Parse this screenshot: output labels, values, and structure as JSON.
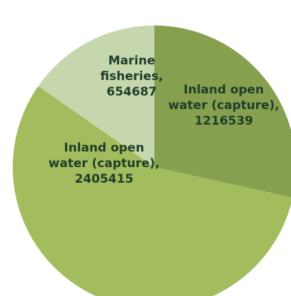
{
  "chart_data": {
    "type": "pie",
    "title": "",
    "slices": [
      {
        "name": "Inland open water (capture)",
        "value": 1216539,
        "color": "#86a04f",
        "label_lines": [
          "Inland open",
          "water (capture),",
          "1216539"
        ]
      },
      {
        "name": "Inland open water (capture)",
        "value": 2405415,
        "color": "#a3bc5e",
        "label_lines": [
          "Inland open",
          "water (capture),",
          "2405415"
        ]
      },
      {
        "name": "Marine fisheries",
        "value": 654687,
        "color": "#c7d7ad",
        "label_lines": [
          "Marine",
          "fisheries,",
          "654687"
        ]
      }
    ],
    "start_angle": "12 o'clock",
    "direction": "clockwise",
    "legend": "none"
  }
}
